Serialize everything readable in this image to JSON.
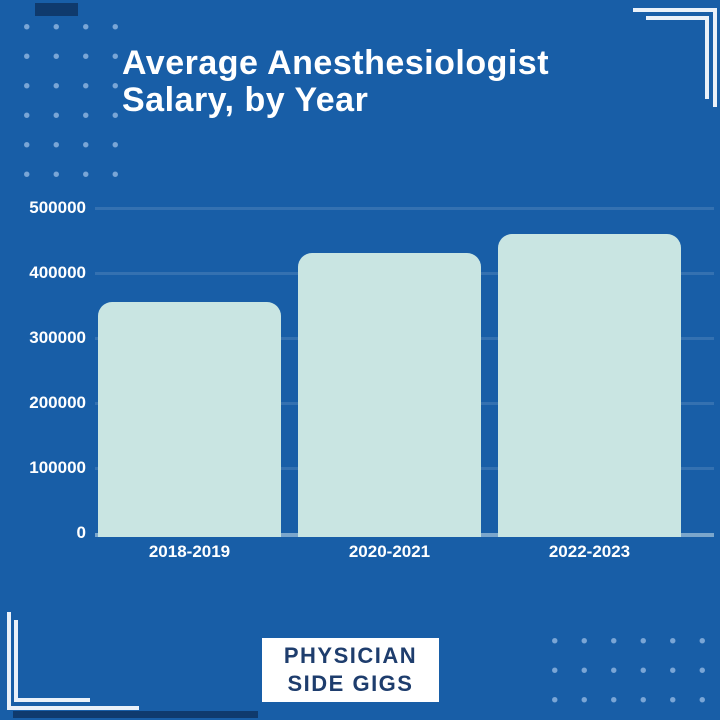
{
  "title": "Average Anesthesiologist\nSalary, by Year",
  "badge": {
    "line1": "PHYSICIAN",
    "line2": "SIDE GIGS"
  },
  "colors": {
    "background": "#185ea7",
    "bar_fill": "#c9e5e2",
    "accent_navy": "#0f3a6d",
    "dot_blue": "#7aa6d6",
    "bracket_white": "#eaf1f9",
    "label_white": "#ffffff",
    "badge_background": "#ffffff",
    "badge_text_navy": "#1e3d6d"
  },
  "chart_data": {
    "type": "bar",
    "title": "Average Anesthesiologist Salary, by Year",
    "categories": [
      "2018-2019",
      "2020-2021",
      "2022-2023"
    ],
    "values": [
      355000,
      430000,
      460000
    ],
    "xlabel": "",
    "ylabel": "",
    "ylim": [
      0,
      500000
    ],
    "yticks": [
      0,
      100000,
      200000,
      300000,
      400000,
      500000
    ],
    "grid": true,
    "legend": "none",
    "bar_color": "#c9e5e2"
  }
}
